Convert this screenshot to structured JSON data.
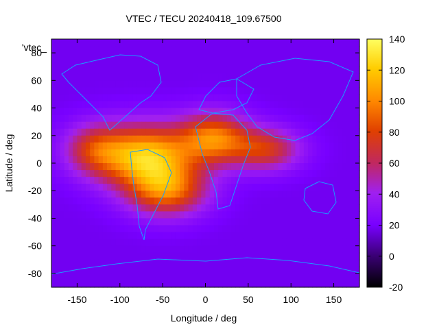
{
  "chart_data": {
    "type": "heatmap",
    "title": "VTEC / TECU 20240418_109.67500",
    "xlabel": "Longitude / deg",
    "ylabel": "Latitude / deg",
    "xlim": [
      -180,
      180
    ],
    "ylim": [
      -90,
      90
    ],
    "x_ticks": [
      "-150",
      "-100",
      "-50",
      "0",
      "50",
      "100",
      "150"
    ],
    "y_ticks": [
      "-80",
      "-60",
      "-40",
      "-20",
      "0",
      "20",
      "40",
      "60",
      "80"
    ],
    "colorbar": {
      "range": [
        -20,
        140
      ],
      "ticks": [
        "-20",
        "0",
        "20",
        "40",
        "60",
        "80",
        "100",
        "120",
        "140"
      ],
      "palette": [
        "#000000",
        "#3c0078",
        "#7800ff",
        "#a020f0",
        "#c02860",
        "#e04000",
        "#ff8800",
        "#ffcc00",
        "#ffff60"
      ]
    },
    "key_label": "'vtec_",
    "grid": false,
    "overlay": "coastlines",
    "overlay_color": "#1a9cff",
    "field": {
      "background_vtec": 18,
      "peaks": [
        {
          "lon": -70,
          "lat": 5,
          "vtec": 100,
          "lon_spread": 55,
          "lat_spread": 22
        },
        {
          "lon": -45,
          "lat": -20,
          "vtec": 70,
          "lon_spread": 45,
          "lat_spread": 18
        },
        {
          "lon": 10,
          "lat": 18,
          "vtec": 75,
          "lon_spread": 40,
          "lat_spread": 18
        },
        {
          "lon": 70,
          "lat": 10,
          "vtec": 55,
          "lon_spread": 40,
          "lat_spread": 15
        },
        {
          "lon": -130,
          "lat": 10,
          "vtec": 45,
          "lon_spread": 35,
          "lat_spread": 18
        }
      ]
    }
  }
}
